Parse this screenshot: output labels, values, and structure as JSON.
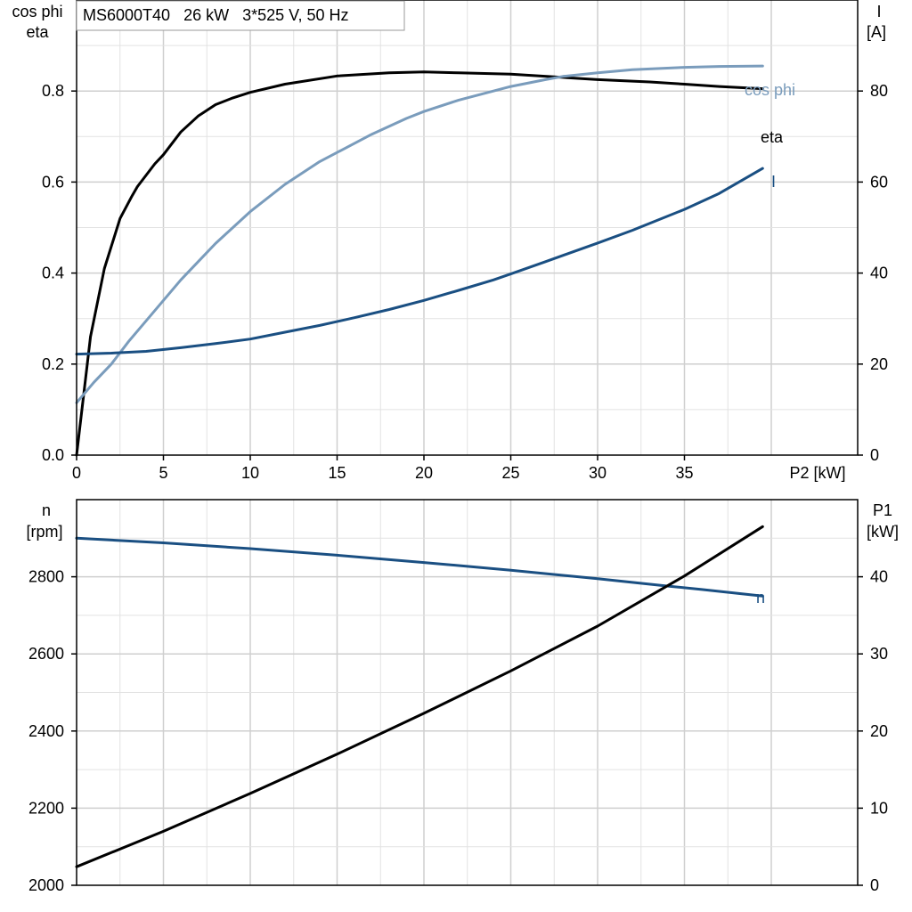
{
  "title": "MS6000T40   26 kW   3*525 V, 50 Hz",
  "colors": {
    "eta": "#000000",
    "cos_phi": "#7a9cbc",
    "current": "#1a4f82",
    "speed": "#1a4f82",
    "p1": "#000000"
  },
  "chart_data": [
    {
      "type": "line",
      "id": "top",
      "title": "MS6000T40   26 kW   3*525 V, 50 Hz",
      "xlabel": "P2 [kW]",
      "x_ticks": [
        0,
        5,
        10,
        15,
        20,
        25,
        30,
        35
      ],
      "xlim": [
        0,
        40
      ],
      "y_left_label": [
        "cos phi",
        "eta"
      ],
      "y_left_ticks": [
        "0.0",
        "0.2",
        "0.4",
        "0.6",
        "0.8"
      ],
      "y_left_lim": [
        0,
        1.0
      ],
      "y_right_label": [
        "I",
        "[A]"
      ],
      "y_right_ticks": [
        "0",
        "20",
        "40",
        "60",
        "80"
      ],
      "y_right_lim": [
        0,
        100
      ],
      "grid": true,
      "series": [
        {
          "name": "eta",
          "axis": "left",
          "color": "#000000",
          "points": [
            [
              0,
              0.0
            ],
            [
              0.8,
              0.26
            ],
            [
              1.6,
              0.41
            ],
            [
              2.5,
              0.52
            ],
            [
              3.2,
              0.57
            ],
            [
              3.5,
              0.59
            ],
            [
              4.5,
              0.64
            ],
            [
              5,
              0.66
            ],
            [
              6,
              0.71
            ],
            [
              7,
              0.745
            ],
            [
              8,
              0.77
            ],
            [
              9,
              0.785
            ],
            [
              10,
              0.797
            ],
            [
              12,
              0.815
            ],
            [
              15,
              0.833
            ],
            [
              18,
              0.84
            ],
            [
              20,
              0.842
            ],
            [
              22,
              0.84
            ],
            [
              25,
              0.837
            ],
            [
              28,
              0.83
            ],
            [
              30,
              0.825
            ],
            [
              33,
              0.82
            ],
            [
              35,
              0.815
            ],
            [
              37,
              0.81
            ],
            [
              39.5,
              0.805
            ]
          ]
        },
        {
          "name": "cos phi",
          "axis": "left",
          "color": "#7a9cbc",
          "points": [
            [
              0,
              0.115
            ],
            [
              1,
              0.16
            ],
            [
              2,
              0.2
            ],
            [
              3,
              0.25
            ],
            [
              4,
              0.295
            ],
            [
              5,
              0.34
            ],
            [
              6,
              0.385
            ],
            [
              7,
              0.425
            ],
            [
              8,
              0.465
            ],
            [
              9,
              0.5
            ],
            [
              10,
              0.535
            ],
            [
              12,
              0.595
            ],
            [
              14,
              0.645
            ],
            [
              15,
              0.665
            ],
            [
              17,
              0.705
            ],
            [
              19,
              0.74
            ],
            [
              20,
              0.755
            ],
            [
              22,
              0.78
            ],
            [
              24,
              0.8
            ],
            [
              25,
              0.81
            ],
            [
              27,
              0.825
            ],
            [
              28,
              0.832
            ],
            [
              30,
              0.84
            ],
            [
              32,
              0.847
            ],
            [
              35,
              0.852
            ],
            [
              37,
              0.854
            ],
            [
              39.5,
              0.855
            ]
          ]
        },
        {
          "name": "I",
          "axis": "right",
          "color": "#1a4f82",
          "points": [
            [
              0,
              22.2
            ],
            [
              2,
              22.4
            ],
            [
              4,
              22.8
            ],
            [
              6,
              23.6
            ],
            [
              8,
              24.5
            ],
            [
              10,
              25.5
            ],
            [
              12,
              27.0
            ],
            [
              14,
              28.5
            ],
            [
              16,
              30.2
            ],
            [
              18,
              32.0
            ],
            [
              20,
              34.0
            ],
            [
              22,
              36.2
            ],
            [
              24,
              38.5
            ],
            [
              25,
              39.8
            ],
            [
              27,
              42.5
            ],
            [
              30,
              46.6
            ],
            [
              32,
              49.4
            ],
            [
              35,
              54.0
            ],
            [
              37,
              57.5
            ],
            [
              39.5,
              63.0
            ]
          ]
        }
      ],
      "series_labels": {
        "cos_phi": "cos phi",
        "eta": "eta",
        "current": "I"
      }
    },
    {
      "type": "line",
      "id": "bottom",
      "xlim": [
        0,
        40
      ],
      "y_left_label": [
        "n",
        "[rpm]"
      ],
      "y_left_ticks": [
        "2000",
        "2200",
        "2400",
        "2600",
        "2800"
      ],
      "y_left_lim": [
        2000,
        3000
      ],
      "y_right_label": [
        "P1",
        "[kW]"
      ],
      "y_right_ticks": [
        "0",
        "10",
        "20",
        "30",
        "40"
      ],
      "y_right_lim": [
        0,
        50
      ],
      "grid": true,
      "series": [
        {
          "name": "n",
          "axis": "left",
          "color": "#1a4f82",
          "points": [
            [
              0,
              2900
            ],
            [
              5,
              2888
            ],
            [
              10,
              2873
            ],
            [
              15,
              2856
            ],
            [
              20,
              2837
            ],
            [
              25,
              2817
            ],
            [
              30,
              2795
            ],
            [
              34,
              2776
            ],
            [
              36,
              2767
            ],
            [
              39.5,
              2750
            ]
          ]
        },
        {
          "name": "P1",
          "axis": "right",
          "color": "#000000",
          "points": [
            [
              0,
              2.4
            ],
            [
              5,
              7.0
            ],
            [
              10,
              11.9
            ],
            [
              15,
              17.0
            ],
            [
              20,
              22.3
            ],
            [
              25,
              27.8
            ],
            [
              30,
              33.6
            ],
            [
              35,
              40.1
            ],
            [
              39.5,
              46.5
            ]
          ]
        }
      ],
      "series_labels": {
        "speed": "n"
      }
    }
  ]
}
